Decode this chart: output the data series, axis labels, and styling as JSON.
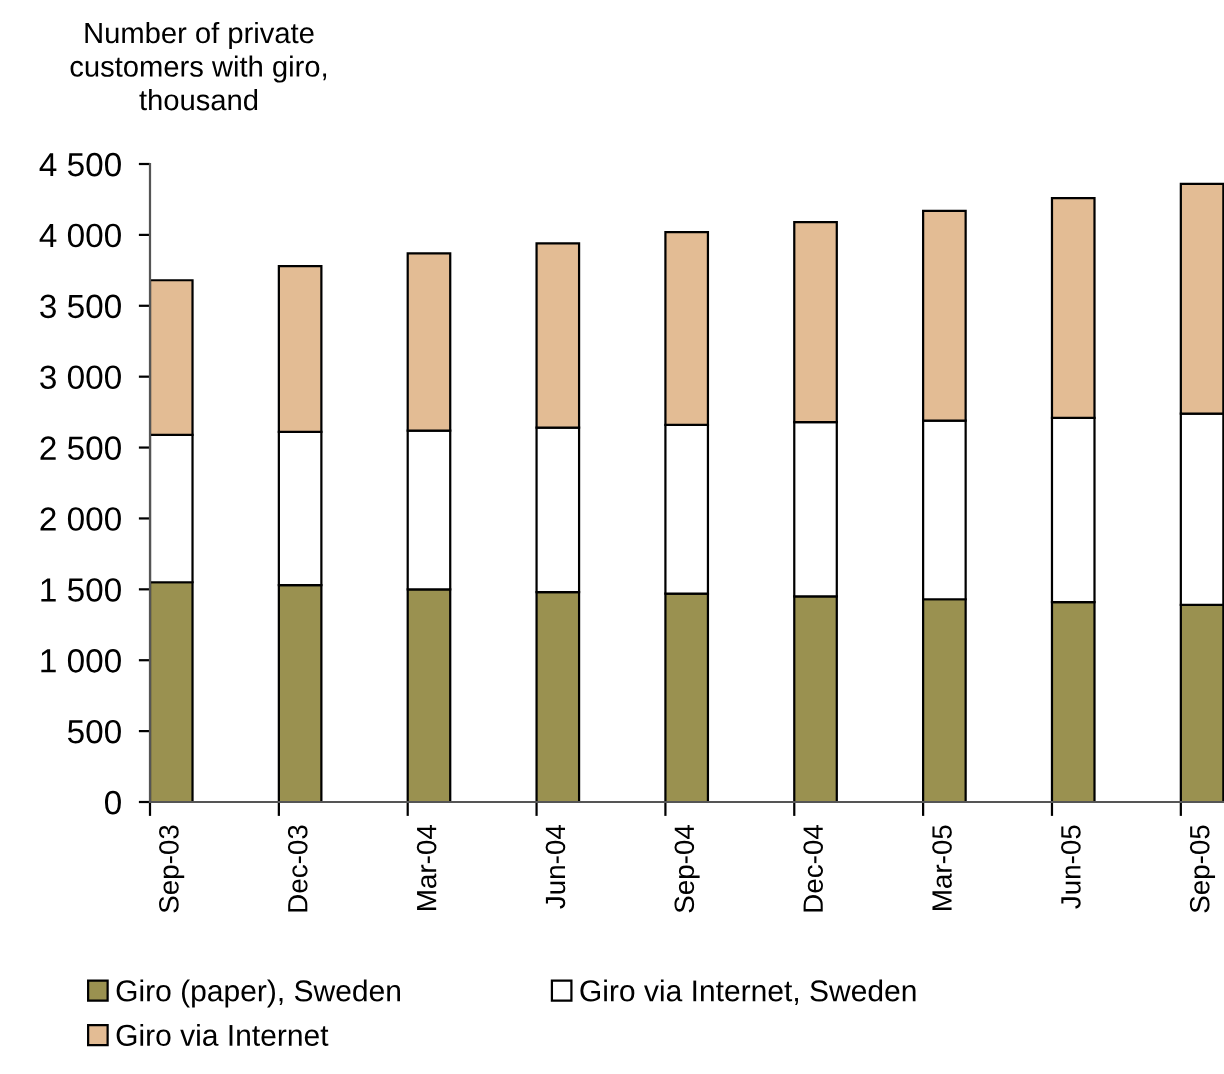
{
  "chart_data": {
    "type": "bar",
    "stacked": true,
    "ylabel": "Number of private\ncustomers with giro,\nthousand",
    "categories": [
      "Sep-03",
      "Dec-03",
      "Mar-04",
      "Jun-04",
      "Sep-04",
      "Dec-04",
      "Mar-05",
      "Jun-05",
      "Sep-05"
    ],
    "series": [
      {
        "name": "Giro (paper), Sweden",
        "color": "#9a9150",
        "values": [
          1550,
          1530,
          1500,
          1480,
          1470,
          1450,
          1430,
          1410,
          1390
        ]
      },
      {
        "name": "Giro via Internet, Sweden",
        "color": "#ffffff",
        "values": [
          1040,
          1080,
          1120,
          1160,
          1190,
          1230,
          1260,
          1300,
          1350
        ]
      },
      {
        "name": "Giro via Internet",
        "color": "#e3bc94",
        "values": [
          1090,
          1170,
          1250,
          1300,
          1360,
          1410,
          1480,
          1550,
          1620
        ]
      }
    ],
    "ylim": [
      0,
      4500
    ],
    "yticks": [
      0,
      500,
      {
        "value": 1000,
        "label": "1 000"
      },
      {
        "value": 1500,
        "label": "1 500"
      },
      {
        "value": 2000,
        "label": "2 000"
      },
      {
        "value": 2500,
        "label": "2 500"
      },
      {
        "value": 3000,
        "label": "3 000"
      },
      {
        "value": 3500,
        "label": "3 500"
      },
      {
        "value": 4000,
        "label": "4 000"
      },
      {
        "value": 4500,
        "label": "4 500"
      }
    ],
    "legend": "bottom"
  }
}
